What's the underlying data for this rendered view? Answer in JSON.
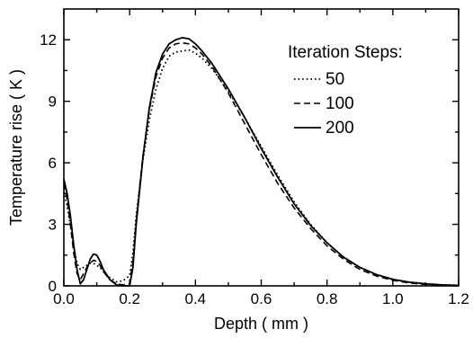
{
  "chart_data": {
    "type": "line",
    "xlabel": "Depth ( mm )",
    "ylabel": "Temperature rise ( K )",
    "xlim": [
      0.0,
      1.2
    ],
    "ylim": [
      0,
      13.5
    ],
    "x_ticks": [
      0.0,
      0.2,
      0.4,
      0.6,
      0.8,
      1.0,
      1.2
    ],
    "x_tick_labels": [
      "0.0",
      "0.2",
      "0.4",
      "0.6",
      "0.8",
      "1.0",
      "1.2"
    ],
    "y_ticks": [
      0,
      3,
      6,
      9,
      12
    ],
    "y_tick_labels": [
      "0",
      "3",
      "6",
      "9",
      "12"
    ],
    "grid": false,
    "legend": {
      "title": "Iteration Steps:",
      "placement": "top-right"
    },
    "series": [
      {
        "name": "50",
        "style": "dotted",
        "x": [
          0.0,
          0.01,
          0.02,
          0.03,
          0.04,
          0.05,
          0.06,
          0.07,
          0.08,
          0.09,
          0.1,
          0.11,
          0.12,
          0.14,
          0.16,
          0.18,
          0.2,
          0.21,
          0.22,
          0.24,
          0.26,
          0.28,
          0.3,
          0.32,
          0.34,
          0.36,
          0.38,
          0.4,
          0.42,
          0.45,
          0.5,
          0.55,
          0.6,
          0.65,
          0.7,
          0.75,
          0.8,
          0.85,
          0.9,
          0.95,
          1.0,
          1.05,
          1.1,
          1.15,
          1.2
        ],
        "y": [
          4.6,
          3.9,
          2.9,
          1.9,
          1.1,
          0.8,
          0.9,
          1.0,
          1.1,
          1.1,
          1.0,
          0.9,
          0.7,
          0.4,
          0.2,
          0.25,
          0.5,
          1.6,
          3.4,
          6.1,
          8.1,
          9.6,
          10.6,
          11.2,
          11.4,
          11.45,
          11.5,
          11.35,
          11.1,
          10.6,
          9.5,
          8.2,
          6.8,
          5.4,
          4.1,
          3.0,
          2.1,
          1.4,
          0.9,
          0.55,
          0.32,
          0.18,
          0.1,
          0.05,
          0.03
        ]
      },
      {
        "name": "100",
        "style": "dashed",
        "x": [
          0.0,
          0.01,
          0.02,
          0.03,
          0.04,
          0.05,
          0.06,
          0.07,
          0.08,
          0.09,
          0.1,
          0.11,
          0.12,
          0.14,
          0.16,
          0.18,
          0.2,
          0.21,
          0.22,
          0.24,
          0.26,
          0.28,
          0.3,
          0.32,
          0.34,
          0.36,
          0.38,
          0.4,
          0.42,
          0.45,
          0.5,
          0.55,
          0.6,
          0.65,
          0.7,
          0.75,
          0.8,
          0.85,
          0.9,
          0.95,
          1.0,
          1.05,
          1.1,
          1.15,
          1.2
        ],
        "y": [
          5.0,
          4.2,
          3.0,
          1.6,
          0.6,
          0.3,
          0.6,
          0.9,
          1.1,
          1.25,
          1.2,
          1.0,
          0.7,
          0.3,
          0.1,
          0.05,
          0.1,
          1.2,
          3.2,
          6.3,
          8.6,
          10.2,
          11.1,
          11.6,
          11.8,
          11.85,
          11.8,
          11.6,
          11.3,
          10.7,
          9.4,
          7.9,
          6.4,
          5.0,
          3.8,
          2.8,
          1.95,
          1.3,
          0.8,
          0.48,
          0.27,
          0.14,
          0.07,
          0.03,
          0.01
        ]
      },
      {
        "name": "200",
        "style": "solid",
        "x": [
          0.0,
          0.01,
          0.02,
          0.03,
          0.04,
          0.05,
          0.06,
          0.07,
          0.08,
          0.09,
          0.1,
          0.11,
          0.12,
          0.14,
          0.16,
          0.18,
          0.2,
          0.21,
          0.22,
          0.24,
          0.26,
          0.28,
          0.3,
          0.32,
          0.34,
          0.36,
          0.38,
          0.4,
          0.42,
          0.45,
          0.5,
          0.55,
          0.6,
          0.65,
          0.7,
          0.75,
          0.8,
          0.85,
          0.9,
          0.95,
          1.0,
          1.05,
          1.1,
          1.15,
          1.2
        ],
        "y": [
          5.2,
          4.5,
          3.4,
          2.0,
          0.8,
          0.1,
          0.3,
          0.8,
          1.3,
          1.55,
          1.5,
          1.2,
          0.8,
          0.3,
          0.05,
          0.0,
          0.0,
          0.9,
          3.0,
          6.2,
          8.7,
          10.4,
          11.3,
          11.8,
          12.0,
          12.1,
          12.05,
          11.8,
          11.45,
          10.85,
          9.6,
          8.2,
          6.7,
          5.3,
          4.0,
          2.95,
          2.1,
          1.4,
          0.9,
          0.55,
          0.32,
          0.18,
          0.1,
          0.05,
          0.02
        ]
      }
    ]
  }
}
